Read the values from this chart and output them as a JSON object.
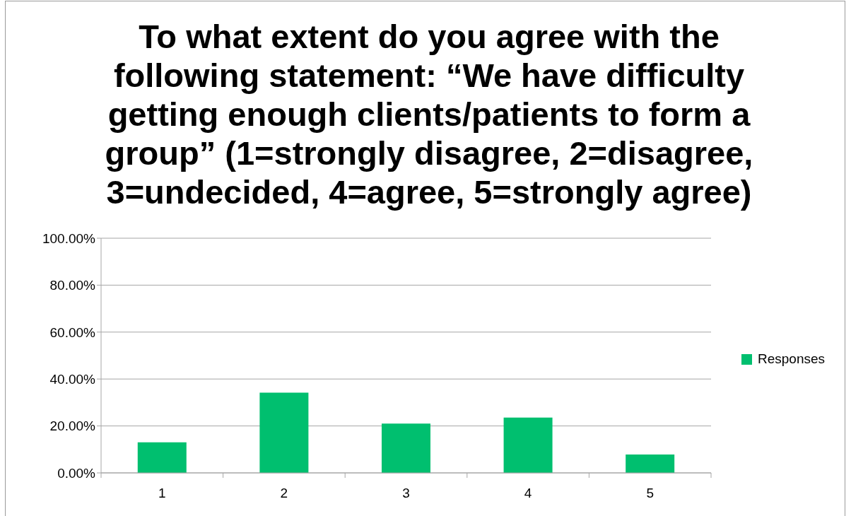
{
  "chart_data": {
    "type": "bar",
    "title": "To what extent do you agree with the following statement: “We have difficulty getting enough clients/patients to form a group” (1=strongly disagree, 2=disagree, 3=undecided, 4=agree, 5=strongly agree)",
    "categories": [
      "1",
      "2",
      "3",
      "4",
      "5"
    ],
    "series": [
      {
        "name": "Responses",
        "color": "#00bf6f",
        "values": [
          13.0,
          34.2,
          21.0,
          23.6,
          7.8
        ]
      }
    ],
    "ylim": [
      0,
      100
    ],
    "yticks": [
      {
        "value": 0,
        "label": "0.00%"
      },
      {
        "value": 20,
        "label": "20.00%"
      },
      {
        "value": 40,
        "label": "40.00%"
      },
      {
        "value": 60,
        "label": "60.00%"
      },
      {
        "value": 80,
        "label": "80.00%"
      },
      {
        "value": 100,
        "label": "100.00%"
      }
    ],
    "grid": "y",
    "legend": "right"
  }
}
